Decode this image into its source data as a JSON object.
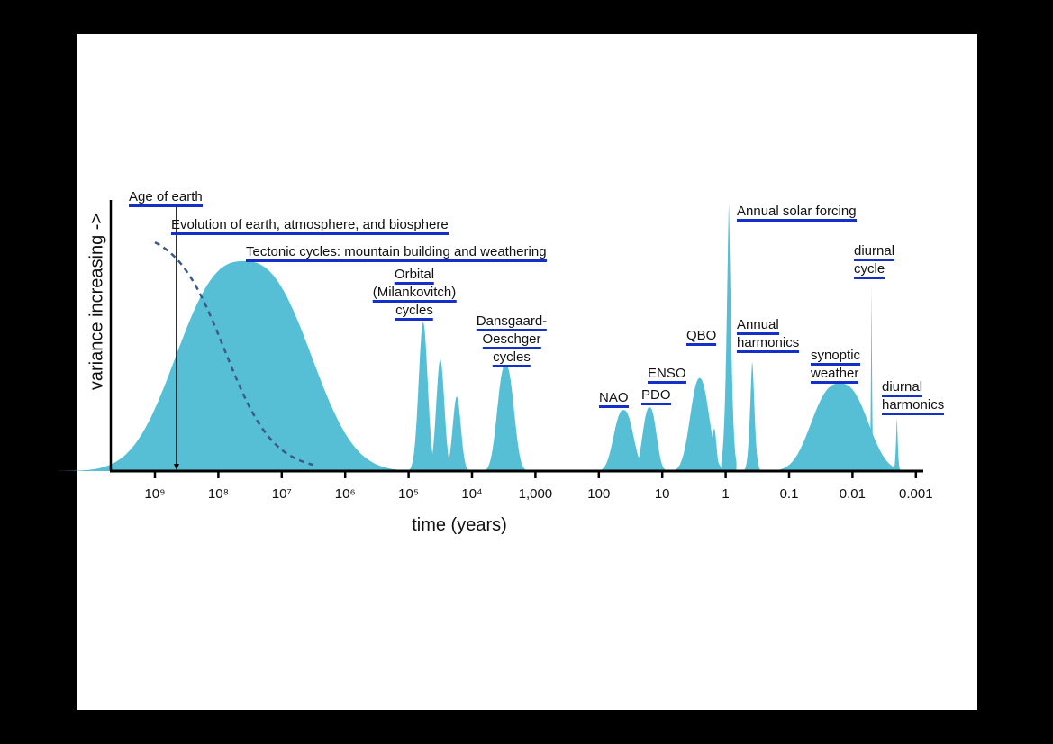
{
  "chart_data": {
    "type": "area",
    "title": "",
    "xlabel": "time (years)",
    "ylabel": "variance increasing ->",
    "x_scale": "log10, decreasing to the right",
    "xlim_log10": [
      9.4,
      -3.15
    ],
    "ylim": [
      0,
      1
    ],
    "fill_color": "#56bfd6",
    "underline_color": "#1530c8",
    "ticks": [
      {
        "log": 9,
        "label": "10⁹"
      },
      {
        "log": 8,
        "label": "10⁸"
      },
      {
        "log": 7,
        "label": "10⁷"
      },
      {
        "log": 6,
        "label": "10⁶"
      },
      {
        "log": 5,
        "label": "10⁵"
      },
      {
        "log": 4,
        "label": "10⁴"
      },
      {
        "log": 3,
        "label": "1,000"
      },
      {
        "log": 2,
        "label": "100"
      },
      {
        "log": 1,
        "label": "10"
      },
      {
        "log": 0,
        "label": "1"
      },
      {
        "log": -1,
        "label": "0.1"
      },
      {
        "log": -2,
        "label": "0.01"
      },
      {
        "log": -3,
        "label": "0.001"
      }
    ],
    "peaks": [
      {
        "name": "tectonic",
        "log": 7.6,
        "variance": 0.79,
        "width": 1.3,
        "shape": 2.6
      },
      {
        "name": "orbital-1",
        "log": 4.77,
        "variance": 0.56,
        "width": 0.1,
        "shape": 2
      },
      {
        "name": "orbital-2",
        "log": 4.5,
        "variance": 0.42,
        "width": 0.09,
        "shape": 2
      },
      {
        "name": "orbital-3",
        "log": 4.24,
        "variance": 0.28,
        "width": 0.09,
        "shape": 2
      },
      {
        "name": "dansgaard-oeschger",
        "log": 3.47,
        "variance": 0.4,
        "width": 0.17,
        "shape": 2.4
      },
      {
        "name": "nao",
        "log": 1.61,
        "variance": 0.23,
        "width": 0.2,
        "shape": 2.4
      },
      {
        "name": "pdo",
        "log": 1.2,
        "variance": 0.24,
        "width": 0.14,
        "shape": 2.4
      },
      {
        "name": "enso",
        "log": 0.41,
        "variance": 0.35,
        "width": 0.2,
        "shape": 2.2
      },
      {
        "name": "qbo",
        "log": 0.18,
        "variance": 0.16,
        "width": 0.05,
        "shape": 2
      },
      {
        "name": "annual-solar",
        "log": -0.05,
        "variance": 1.0,
        "width": 0.05,
        "shape": 1.4
      },
      {
        "name": "annual-harmonics",
        "log": -0.42,
        "variance": 0.41,
        "width": 0.05,
        "shape": 1.6
      },
      {
        "name": "synoptic",
        "log": -1.8,
        "variance": 0.33,
        "width": 0.55,
        "shape": 2.6
      },
      {
        "name": "diurnal-cycle",
        "log": -2.3,
        "variance": 0.7,
        "width": 0.012,
        "shape": 1.2
      },
      {
        "name": "diurnal-harmonics",
        "log": -2.7,
        "variance": 0.2,
        "width": 0.02,
        "shape": 1.4
      }
    ],
    "dashed_curve": {
      "name": "evolution",
      "start_log": 9.0,
      "variance_max": 0.91,
      "midpoint_log": 7.9,
      "steepness": 2.6,
      "end_log": 6.5
    },
    "age_of_earth_log": 8.66,
    "annotations": {
      "age": [
        "Age of earth"
      ],
      "evolution": [
        "Evolution of earth, atmosphere, and biosphere"
      ],
      "tectonic": [
        "Tectonic cycles: mountain building and weathering"
      ],
      "orbital": [
        "Orbital",
        "(Milankovitch)",
        "cycles"
      ],
      "do": [
        "Dansgaard-",
        "Oeschger",
        "cycles"
      ],
      "nao": [
        "NAO"
      ],
      "pdo": [
        "PDO"
      ],
      "enso": [
        "ENSO"
      ],
      "qbo": [
        "QBO"
      ],
      "solar": [
        "Annual solar forcing"
      ],
      "harm": [
        "Annual",
        "harmonics"
      ],
      "synoptic": [
        "synoptic",
        "weather"
      ],
      "diurnal": [
        "diurnal",
        "cycle"
      ],
      "diurnal_harm": [
        "diurnal",
        "harmonics"
      ]
    }
  }
}
